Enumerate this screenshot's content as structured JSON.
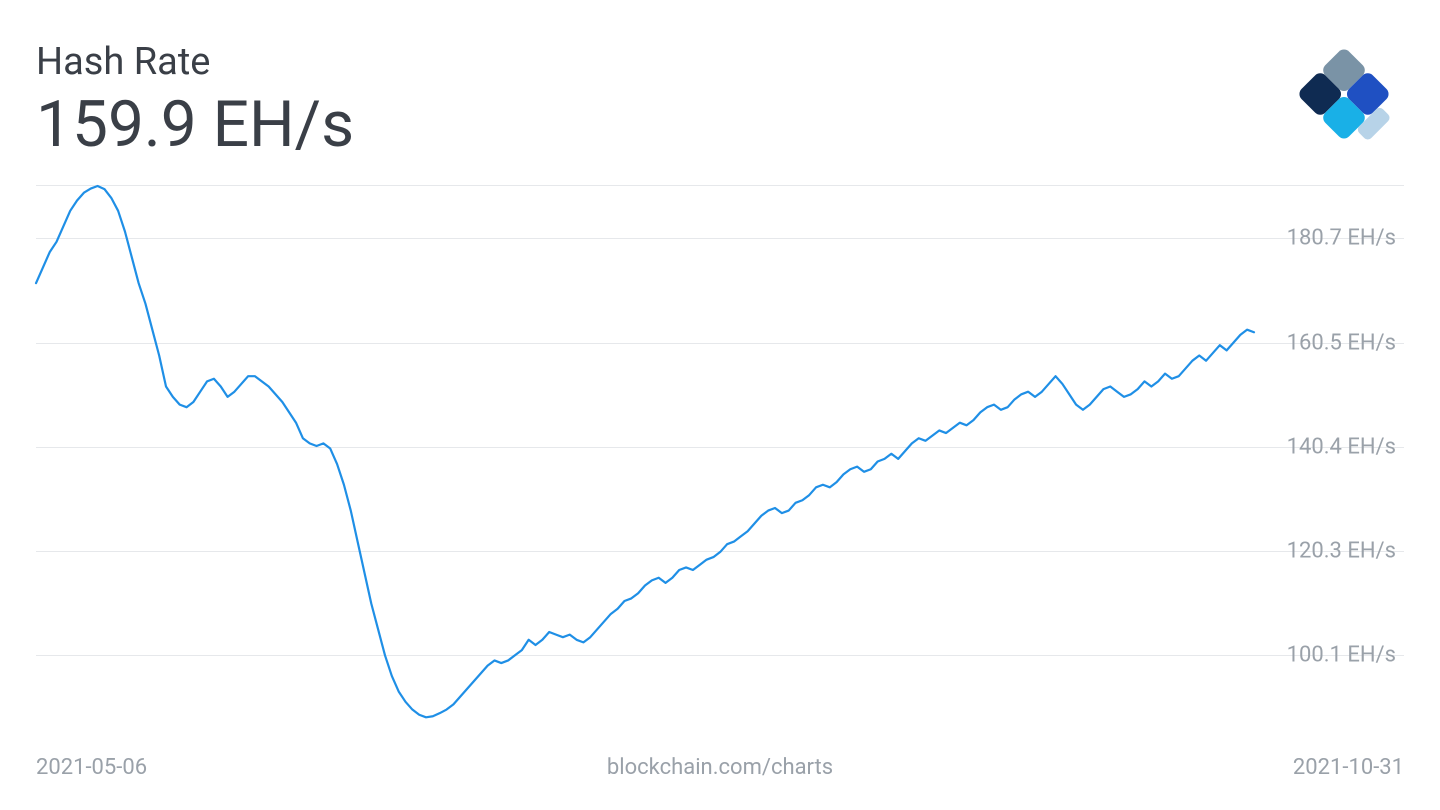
{
  "header": {
    "title": "Hash Rate",
    "value": "159.9 EH/s"
  },
  "logo": {
    "colors": {
      "top": "#7a93a6",
      "right": "#1f50c2",
      "bottom": "#19b0e7",
      "left": "#0f2b52",
      "far_right": "#b7d3e8"
    }
  },
  "chart": {
    "type": "line",
    "background_color": "#ffffff",
    "grid_color": "#e6e8eb",
    "label_color": "#9aa1a9",
    "footer_color": "#9aa1a9",
    "line_color": "#1f8fe6",
    "line_width": 2.2,
    "xlim": [
      0,
      178
    ],
    "ylim_min": 85,
    "ylim_max": 190.8,
    "y_gridlines": [
      180.7,
      160.5,
      140.4,
      120.3,
      100.1
    ],
    "y_labels": [
      "180.7 EH/s",
      "160.5 EH/s",
      "140.4 EH/s",
      "120.3 EH/s",
      "100.1 EH/s"
    ],
    "values": [
      172,
      175,
      178,
      180,
      183,
      186,
      188,
      189.5,
      190.3,
      190.8,
      190.2,
      188.5,
      186,
      182,
      177,
      172,
      168,
      163,
      158,
      152,
      150,
      148.5,
      148,
      149,
      151,
      153,
      153.5,
      152,
      150,
      151,
      152.5,
      154,
      154,
      153,
      152,
      150.5,
      149,
      147,
      145,
      142,
      141,
      140.5,
      141,
      140,
      137,
      133,
      128,
      122,
      116,
      110,
      105,
      100,
      96,
      93,
      91,
      89.5,
      88.5,
      88,
      88.2,
      88.8,
      89.5,
      90.5,
      92,
      93.5,
      95,
      96.5,
      98,
      99,
      98.5,
      99,
      100,
      101,
      103,
      102,
      103,
      104.5,
      104,
      103.5,
      104,
      103,
      102.5,
      103.5,
      105,
      106.5,
      108,
      109,
      110.5,
      111,
      112,
      113.5,
      114.5,
      115,
      114,
      115,
      116.5,
      117,
      116.5,
      117.5,
      118.5,
      119,
      120,
      121.5,
      122,
      123,
      124,
      125.5,
      127,
      128,
      128.5,
      127.5,
      128,
      129.5,
      130,
      131,
      132.5,
      133,
      132.5,
      133.5,
      135,
      136,
      136.5,
      135.5,
      136,
      137.5,
      138,
      139,
      138,
      139.5,
      141,
      142,
      141.5,
      142.5,
      143.5,
      143,
      144,
      145,
      144.5,
      145.5,
      147,
      148,
      148.5,
      147.5,
      148,
      149.5,
      150.5,
      151,
      150,
      151,
      152.5,
      154,
      152.5,
      150.5,
      148.5,
      147.5,
      148.5,
      150,
      151.5,
      152,
      151,
      150,
      150.5,
      151.5,
      153,
      152,
      153,
      154.5,
      153.5,
      154,
      155.5,
      157,
      158,
      157,
      158.5,
      160,
      159,
      160.5,
      162,
      163,
      162.5
    ],
    "x_start_label": "2021-05-06",
    "x_end_label": "2021-10-31",
    "source_label": "blockchain.com/charts"
  }
}
